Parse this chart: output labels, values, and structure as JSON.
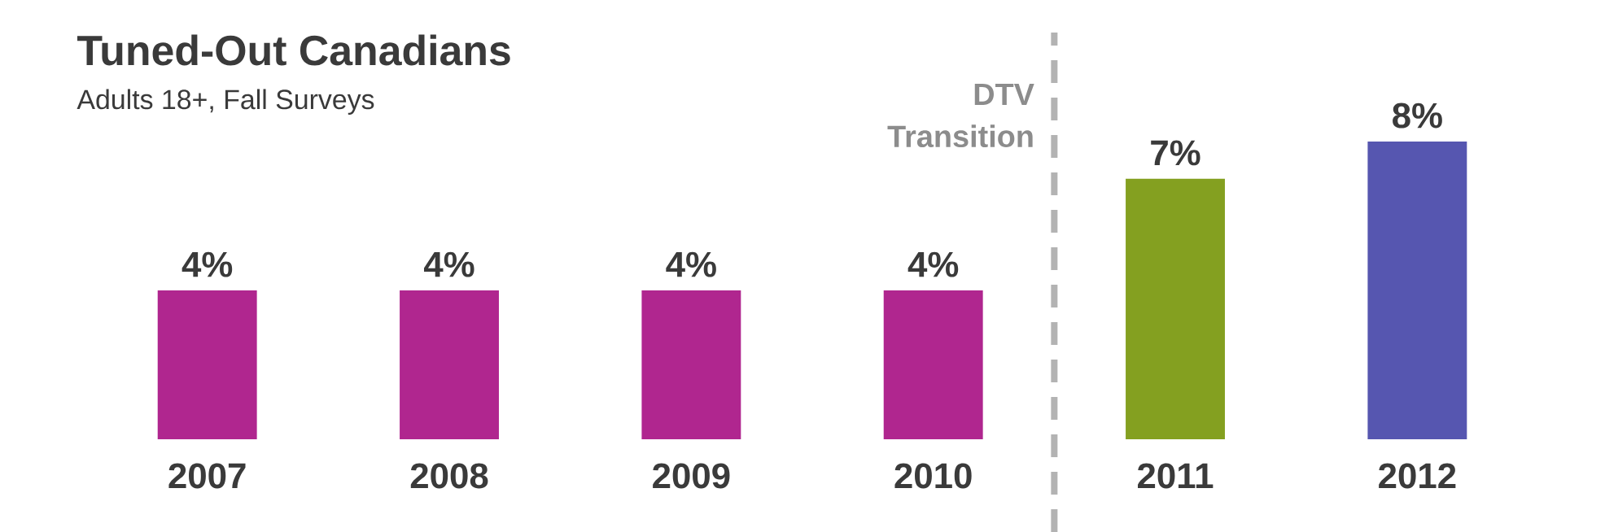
{
  "chart_data": {
    "type": "bar",
    "title": "Tuned-Out Canadians",
    "subtitle": "Adults 18+, Fall Surveys",
    "categories": [
      "2007",
      "2008",
      "2009",
      "2010",
      "2011",
      "2012"
    ],
    "values": [
      4,
      4,
      4,
      4,
      7,
      8
    ],
    "colors": [
      "#b0268f",
      "#b0268f",
      "#b0268f",
      "#b0268f",
      "#84a020",
      "#5656b0"
    ],
    "value_labels": [
      "4%",
      "4%",
      "4%",
      "4%",
      "7%",
      "8%"
    ],
    "annotations": [
      "DTV Transition"
    ]
  }
}
